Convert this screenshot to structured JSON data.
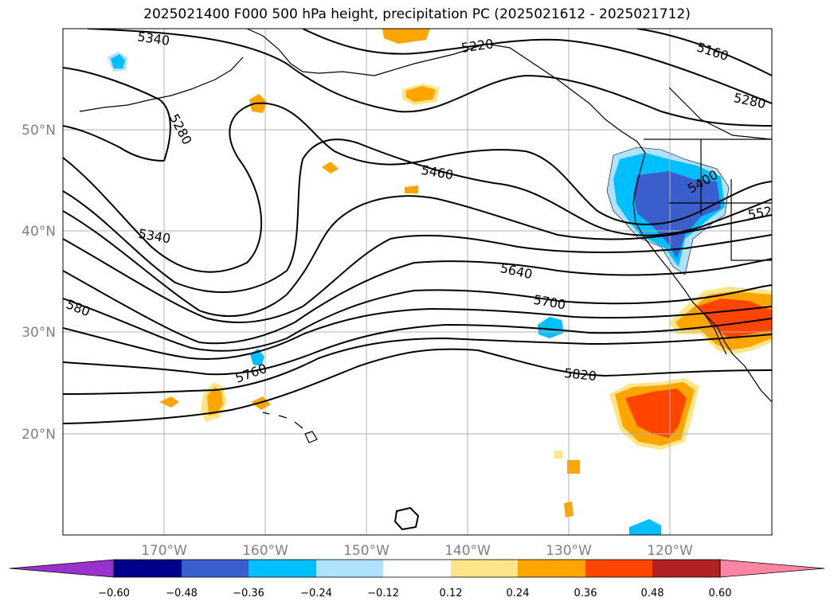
{
  "title": "2025021400 F000 500 hPa height, precipitation PC (2025021612 - 2025021712)",
  "lon_labels": [
    "170°W",
    "160°W",
    "150°W",
    "140°W",
    "130°W",
    "120°W"
  ],
  "lat_labels": [
    "50°N",
    "40°N",
    "30°N",
    "20°N"
  ],
  "contour_labels": {
    "c5340a": "5340",
    "c5220": "5220",
    "c5160": "5160",
    "c5280a": "5280",
    "c5280b": "5280",
    "c5460": "5460",
    "c5400": "5400",
    "c552": "552",
    "c5340b": "5340",
    "c5640": "5640",
    "c5700": "5700",
    "c580": "580",
    "c5760": "5760",
    "c5820": "5820"
  },
  "colorbar": {
    "ticks": [
      "−0.60",
      "−0.48",
      "−0.36",
      "−0.24",
      "−0.12",
      "0.12",
      "0.24",
      "0.36",
      "0.48",
      "0.60"
    ],
    "colors": [
      "#9932cc",
      "#00008b",
      "#3a5fcd",
      "#00bfff",
      "#b0e2ff",
      "#ffffff",
      "#fde68a",
      "#ffa500",
      "#ff4500",
      "#b22222",
      "#ff85a2"
    ]
  },
  "colors": {
    "frame": "#000000",
    "grid": "#b0b0b0",
    "axis_label": "#808080"
  }
}
